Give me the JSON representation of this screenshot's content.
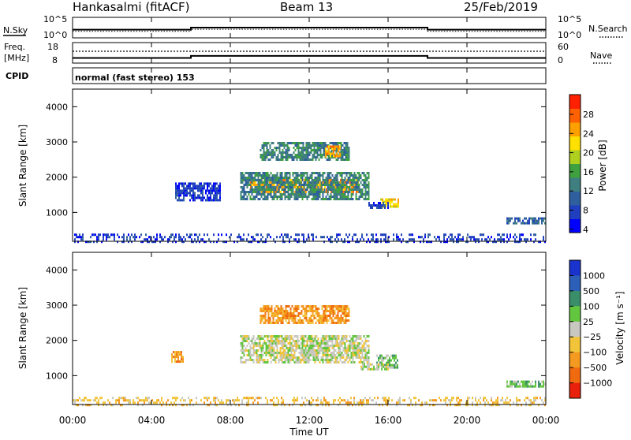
{
  "header": {
    "station": "Hankasalmi (fitACF)",
    "beam": "Beam 13",
    "date": "25/Feb/2019"
  },
  "nsky_panel": {
    "left_label": "N.Sky",
    "right_label": "N.Search",
    "left_ticks": [
      "10^5",
      "10^0"
    ],
    "right_ticks": [
      "10^5",
      "10^0"
    ]
  },
  "freq_panel": {
    "left_label_1": "Freq.",
    "left_label_2": "[MHz]",
    "right_label": "Nave",
    "left_ticks": [
      "18",
      "8"
    ],
    "right_ticks": [
      "60",
      "0"
    ]
  },
  "cpid": {
    "label": "CPID",
    "value": "normal (fast stereo) 153"
  },
  "power_colorbar": {
    "title": "Power [dB]",
    "ticks": [
      "28",
      "24",
      "20",
      "16",
      "12",
      "8",
      "4"
    ],
    "colors": [
      "#0000ff",
      "#1f3fbf",
      "#2f5f9f",
      "#3f7f7f",
      "#3fa03f",
      "#b0d020",
      "#ffe000",
      "#ffa000",
      "#ff6000",
      "#ff2000"
    ]
  },
  "velocity_colorbar": {
    "title": "Velocity [m s⁻¹]",
    "ticks": [
      "1000",
      "500",
      "100",
      "25",
      "−25",
      "−100",
      "−500",
      "−1000"
    ],
    "colors": [
      "#1a33cc",
      "#2c5fb8",
      "#3a8f6a",
      "#63c63f",
      "#c8c8c0",
      "#f2c43a",
      "#f59a20",
      "#f06a10",
      "#e8200c"
    ]
  },
  "x_axis": {
    "label": "Time UT",
    "ticks": [
      "00:00",
      "04:00",
      "08:00",
      "12:00",
      "16:00",
      "20:00",
      "00:00"
    ]
  },
  "y_axis": {
    "label": "Slant Range [km]",
    "ticks": [
      "1000",
      "2000",
      "3000",
      "4000"
    ]
  },
  "chart_data": [
    {
      "type": "line",
      "name": "nsky-nsearch",
      "x": [
        0,
        6,
        6,
        18,
        18,
        24
      ],
      "y": [
        2.0,
        2.0,
        2.5,
        2.5,
        2.0,
        2.0
      ],
      "ylim": [
        0,
        5
      ]
    },
    {
      "type": "line",
      "name": "frequency",
      "x": [
        0,
        6,
        6,
        18,
        18,
        24
      ],
      "y": [
        10.5,
        10.5,
        11.5,
        11.5,
        10.5,
        10.5
      ],
      "ylim": [
        8,
        18
      ]
    },
    {
      "type": "heatmap",
      "name": "power",
      "xlim": [
        0,
        24
      ],
      "ylim": [
        180,
        4500
      ],
      "regions": [
        {
          "t0": 9.0,
          "t1": 14.5,
          "r0": 1550,
          "r1": 1950,
          "level": 7
        },
        {
          "t0": 8.5,
          "t1": 15.0,
          "r0": 1400,
          "r1": 2150,
          "level": 3
        },
        {
          "t0": 9.5,
          "t1": 14.0,
          "r0": 2500,
          "r1": 3000,
          "level": 3
        },
        {
          "t0": 12.8,
          "t1": 13.6,
          "r0": 2600,
          "r1": 2900,
          "level": 7
        },
        {
          "t0": 15.6,
          "t1": 16.5,
          "r0": 1150,
          "r1": 1400,
          "level": 6
        },
        {
          "t0": 15.0,
          "t1": 16.0,
          "r0": 1100,
          "r1": 1300,
          "level": 1
        },
        {
          "t0": 5.2,
          "t1": 7.5,
          "r0": 1350,
          "r1": 1850,
          "level": 1
        },
        {
          "t0": 22.0,
          "t1": 24.0,
          "r0": 700,
          "r1": 860,
          "level": 2
        },
        {
          "t0": 0.0,
          "t1": 24.0,
          "r0": 180,
          "r1": 400,
          "level": 1
        }
      ]
    },
    {
      "type": "heatmap",
      "name": "velocity",
      "xlim": [
        0,
        24
      ],
      "ylim": [
        180,
        4500
      ],
      "regions": [
        {
          "t0": 8.5,
          "t1": 15.0,
          "r0": 1400,
          "r1": 2150,
          "level": 4
        },
        {
          "t0": 9.5,
          "t1": 14.0,
          "r0": 2500,
          "r1": 3000,
          "level": 6
        },
        {
          "t0": 15.4,
          "t1": 16.5,
          "r0": 1200,
          "r1": 1600,
          "level": 3
        },
        {
          "t0": 14.6,
          "t1": 16.0,
          "r0": 1150,
          "r1": 1350,
          "level": 4
        },
        {
          "t0": 5.0,
          "t1": 5.6,
          "r0": 1400,
          "r1": 1700,
          "level": 6
        },
        {
          "t0": 22.0,
          "t1": 24.0,
          "r0": 700,
          "r1": 860,
          "level": 3
        },
        {
          "t0": 0.0,
          "t1": 24.0,
          "r0": 180,
          "r1": 400,
          "level": 5
        }
      ]
    }
  ]
}
